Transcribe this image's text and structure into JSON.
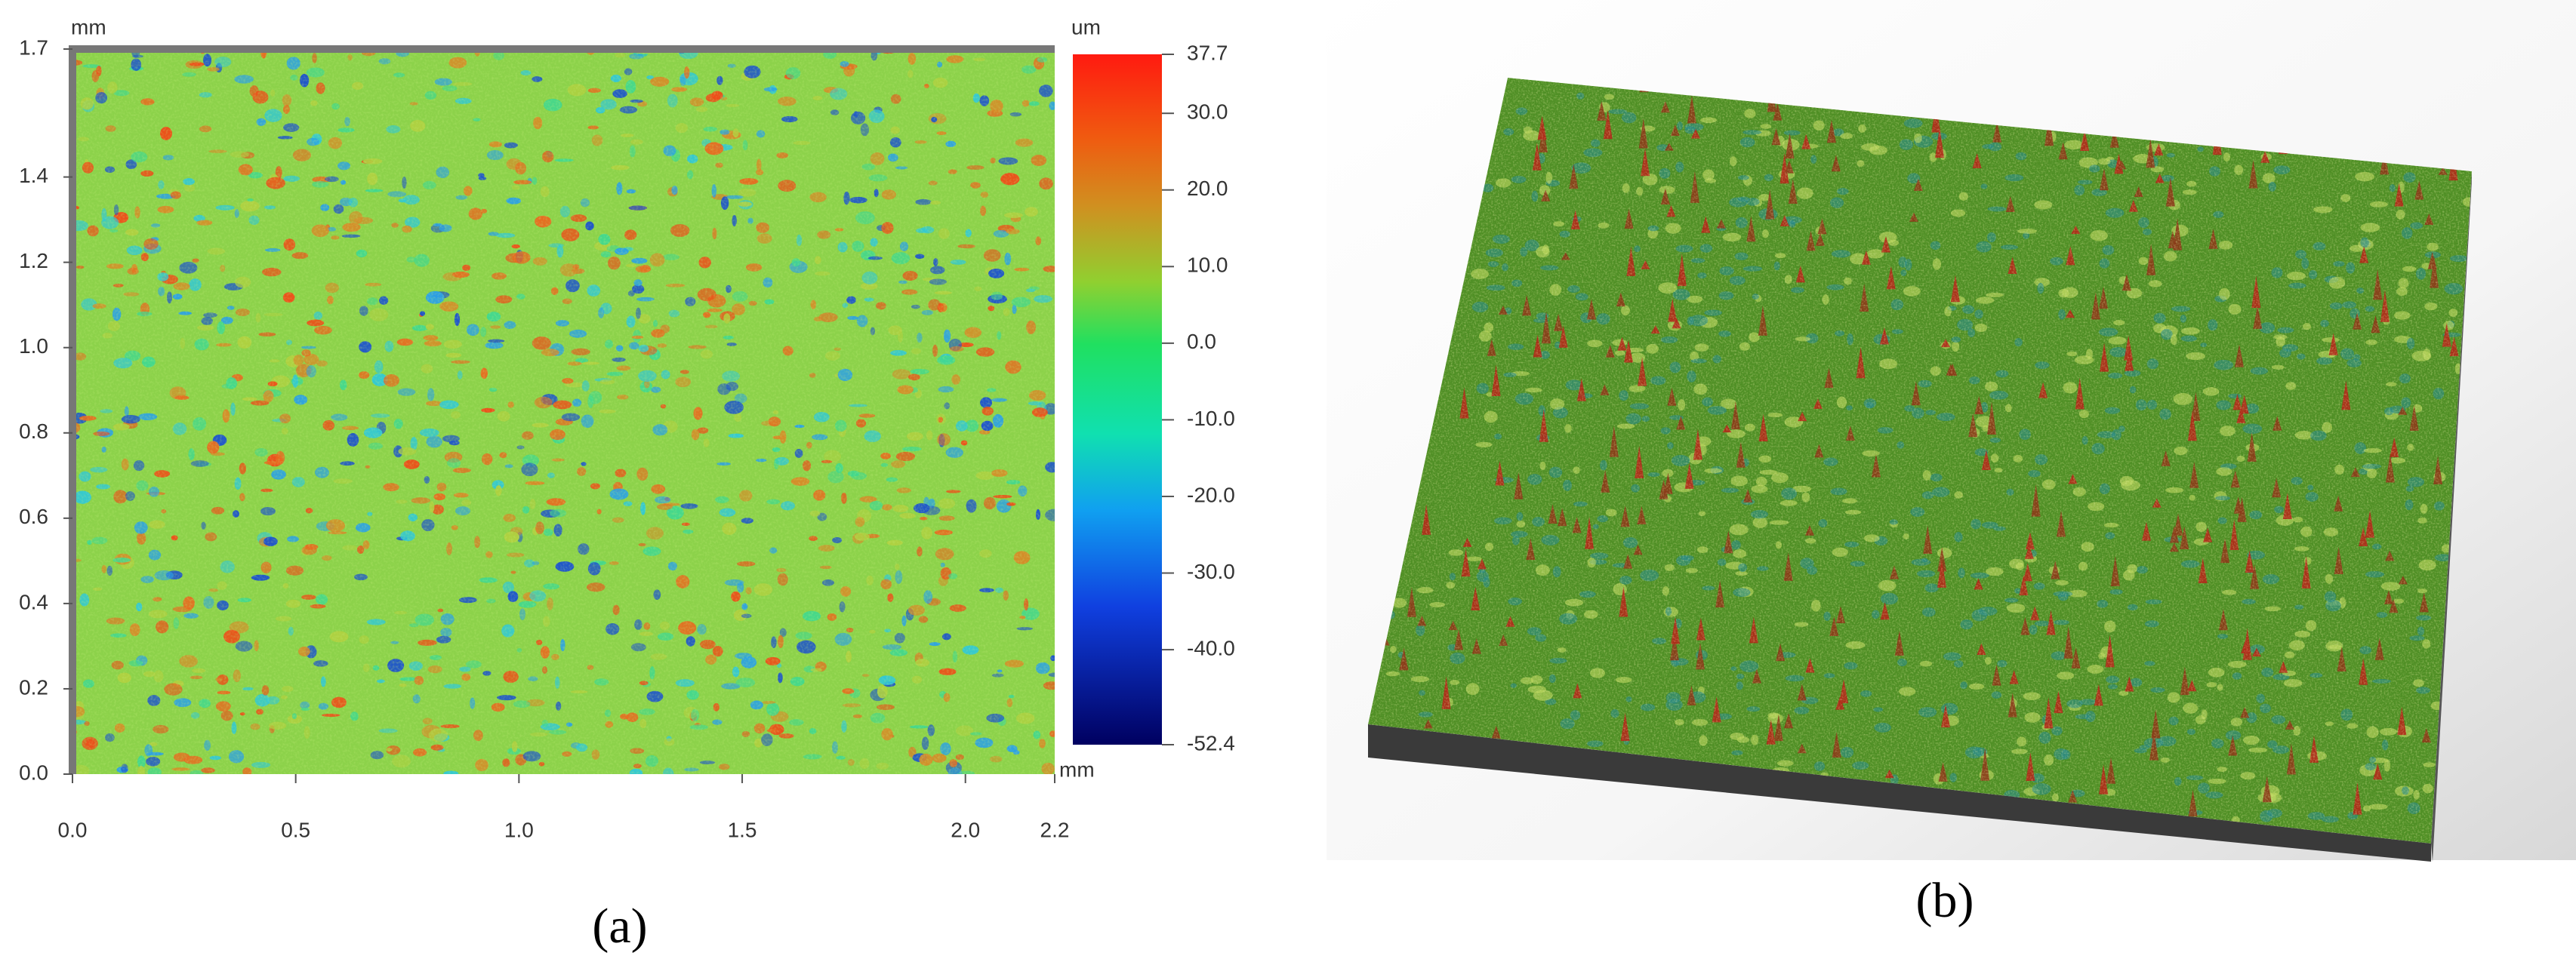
{
  "panel_a": {
    "x_unit": "mm",
    "y_unit": "mm",
    "colorbar_unit": "um",
    "xlim": [
      0,
      2.2
    ],
    "ylim": [
      0,
      1.7
    ],
    "xticks": [
      {
        "value": 0,
        "label": "0.0"
      },
      {
        "value": 0.5,
        "label": "0.5"
      },
      {
        "value": 1,
        "label": "1.0"
      },
      {
        "value": 1.5,
        "label": "1.5"
      },
      {
        "value": 2,
        "label": "2.0"
      },
      2.2
    ],
    "yticks": [
      {
        "value": 0,
        "label": "0.0"
      },
      0.2,
      0.4,
      0.6,
      0.8,
      {
        "value": 1,
        "label": "1.0"
      },
      1.2,
      1.4,
      1.7
    ],
    "colorbar_lim": [
      -52.4,
      37.7
    ],
    "colorbar_ticks": [
      37.7,
      {
        "value": 30,
        "label": "30.0"
      },
      {
        "value": 20,
        "label": "20.0"
      },
      {
        "value": 10,
        "label": "10.0"
      },
      {
        "value": 0,
        "label": "0.0"
      },
      {
        "value": -10,
        "label": "-10.0"
      },
      {
        "value": -20,
        "label": "-20.0"
      },
      {
        "value": -30,
        "label": "-30.0"
      },
      {
        "value": -40,
        "label": "-40.0"
      },
      -52.4
    ],
    "label": "(a)"
  },
  "panel_b": {
    "label": "(b)"
  }
}
